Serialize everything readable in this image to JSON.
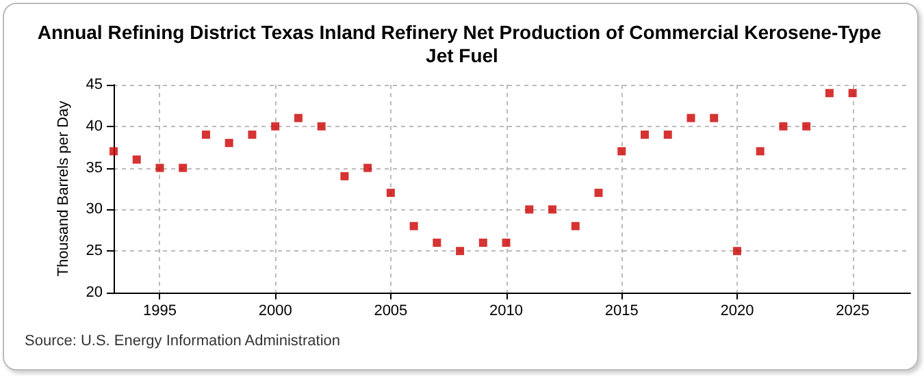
{
  "chart_data": {
    "type": "scatter",
    "title": "Annual Refining District Texas Inland Refinery Net Production of Commercial Kerosene-Type Jet Fuel",
    "ylabel": "Thousand Barrels per Day",
    "annotations": [
      "Source: U.S. Energy Information Administration"
    ],
    "x": [
      1993,
      1994,
      1995,
      1996,
      1997,
      1998,
      1999,
      2000,
      2001,
      2002,
      2003,
      2004,
      2005,
      2006,
      2007,
      2008,
      2009,
      2010,
      2011,
      2012,
      2013,
      2014,
      2015,
      2016,
      2017,
      2018,
      2019,
      2020,
      2021,
      2022,
      2023,
      2024,
      2025
    ],
    "series": [
      {
        "color": "#cc0000",
        "values": [
          37,
          36,
          35,
          35,
          39,
          38,
          39,
          40,
          41,
          40,
          34,
          35,
          32,
          28,
          26,
          25,
          26,
          26,
          30,
          30,
          28,
          32,
          37,
          39,
          39,
          41,
          41,
          25,
          37,
          40,
          40,
          44,
          44
        ]
      }
    ],
    "xlim": [
      1993,
      2027.5
    ],
    "xticks": [
      1995,
      2000,
      2005,
      2010,
      2015,
      2020,
      2025
    ],
    "ylim": [
      20,
      45
    ],
    "yticks": [
      20,
      25,
      30,
      35,
      40,
      45
    ],
    "grid": true,
    "marker": "square"
  }
}
